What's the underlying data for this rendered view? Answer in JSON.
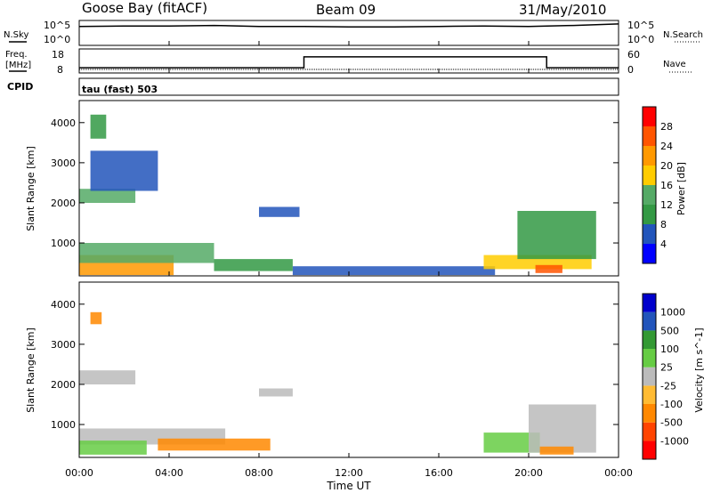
{
  "header": {
    "station": "Goose Bay (fitACF)",
    "beam": "Beam 09",
    "date": "31/May/2010"
  },
  "noise_panel": {
    "left_label": "N.Sky",
    "right_label": "N.Search",
    "left_ticks": [
      "10^5",
      "10^0"
    ],
    "right_ticks": [
      "10^5",
      "10^0"
    ]
  },
  "freq_panel": {
    "left_label_line1": "Freq.",
    "left_label_line2": "[MHz]",
    "right_label": "Nave",
    "left_ticks": [
      "18",
      "8"
    ],
    "right_ticks": [
      "60",
      "0"
    ]
  },
  "cpid": {
    "label": "CPID",
    "mode": "tau (fast) 503"
  },
  "x_axis": {
    "label": "Time UT",
    "ticks": [
      "00:00",
      "04:00",
      "08:00",
      "12:00",
      "16:00",
      "20:00",
      "00:00"
    ]
  },
  "colors": {
    "power_scale": [
      "#0000ff",
      "#2255bb",
      "#339944",
      "#55aa66",
      "#ffcc00",
      "#ff9900",
      "#ff5500",
      "#ff0000"
    ],
    "velocity_scale": [
      "#ff0000",
      "#ff4400",
      "#ff8800",
      "#ffbb33",
      "#bbbbbb",
      "#66cc44",
      "#339933",
      "#2255bb",
      "#0000cc"
    ]
  },
  "chart_data": [
    {
      "type": "line",
      "name": "noise",
      "x_range_hours": [
        0,
        24
      ],
      "ylim": [
        0,
        5
      ],
      "yscale": "log",
      "series": [
        {
          "x": [
            0,
            2,
            4,
            6,
            8,
            10,
            12,
            14,
            16,
            18,
            20,
            22,
            24
          ],
          "values": [
            3.8,
            3.9,
            3.9,
            4.0,
            3.8,
            3.8,
            3.7,
            3.7,
            3.8,
            3.9,
            3.8,
            4.0,
            4.3
          ]
        }
      ]
    },
    {
      "type": "line",
      "name": "frequency and nave",
      "x_range_hours": [
        0,
        24
      ],
      "ylim": [
        8,
        18
      ],
      "series": [
        {
          "x": [
            0,
            10,
            10,
            20.8,
            20.8,
            24
          ],
          "values": [
            10.2,
            10.2,
            14.7,
            14.7,
            10.2,
            10.2
          ]
        },
        {
          "x": [
            0,
            24
          ],
          "values": [
            9.5,
            9.5
          ]
        }
      ]
    },
    {
      "type": "heatmap",
      "title": "Power [dB]",
      "xlabel": "Time UT",
      "ylabel": "Slant Range [km]",
      "x_range_hours": [
        0,
        24
      ],
      "ylim": [
        180,
        4550
      ],
      "yticks": [
        1000,
        2000,
        3000,
        4000
      ],
      "colorbar_label": "Power [dB]",
      "colorbar_ticks": [
        "4",
        "8",
        "12",
        "16",
        "20",
        "24",
        "28"
      ],
      "values_blocks": [
        {
          "x": [
            0,
            4.2
          ],
          "y": [
            200,
            700
          ],
          "v": 22
        },
        {
          "x": [
            0,
            6.0
          ],
          "y": [
            500,
            1000
          ],
          "v": 12
        },
        {
          "x": [
            0,
            2.5
          ],
          "y": [
            2000,
            2350
          ],
          "v": 14
        },
        {
          "x": [
            0.5,
            3.5
          ],
          "y": [
            2300,
            3300
          ],
          "v": 6
        },
        {
          "x": [
            0.5,
            1.2
          ],
          "y": [
            3600,
            4200
          ],
          "v": 10
        },
        {
          "x": [
            6.0,
            9.5
          ],
          "y": [
            300,
            600
          ],
          "v": 10
        },
        {
          "x": [
            8.0,
            9.8
          ],
          "y": [
            1650,
            1900
          ],
          "v": 6
        },
        {
          "x": [
            9.5,
            18.5
          ],
          "y": [
            200,
            420
          ],
          "v": 6
        },
        {
          "x": [
            18.0,
            22.8
          ],
          "y": [
            350,
            700
          ],
          "v": 18
        },
        {
          "x": [
            19.5,
            23.0
          ],
          "y": [
            600,
            1800
          ],
          "v": 8
        },
        {
          "x": [
            20.3,
            21.5
          ],
          "y": [
            250,
            450
          ],
          "v": 26
        }
      ]
    },
    {
      "type": "heatmap",
      "title": "Velocity [m s^-1]",
      "xlabel": "Time UT",
      "ylabel": "Slant Range [km]",
      "x_range_hours": [
        0,
        24
      ],
      "ylim": [
        180,
        4550
      ],
      "yticks": [
        1000,
        2000,
        3000,
        4000
      ],
      "colorbar_label": "Velocity [m s^-1]",
      "colorbar_ticks": [
        "-1000",
        "-500",
        "-100",
        "-25",
        "25",
        "100",
        "500",
        "1000"
      ],
      "values_blocks": [
        {
          "x": [
            0,
            6.5
          ],
          "y": [
            500,
            900
          ],
          "v": 0
        },
        {
          "x": [
            0,
            2.5
          ],
          "y": [
            2000,
            2350
          ],
          "v": 0
        },
        {
          "x": [
            0,
            3.0
          ],
          "y": [
            250,
            600
          ],
          "v": 60
        },
        {
          "x": [
            3.5,
            8.5
          ],
          "y": [
            350,
            650
          ],
          "v": -80
        },
        {
          "x": [
            0.5,
            1.0
          ],
          "y": [
            3500,
            3800
          ],
          "v": -60
        },
        {
          "x": [
            8.0,
            9.5
          ],
          "y": [
            1700,
            1900
          ],
          "v": 0
        },
        {
          "x": [
            18.0,
            20.5
          ],
          "y": [
            300,
            800
          ],
          "v": 60
        },
        {
          "x": [
            20.0,
            23.0
          ],
          "y": [
            300,
            1500
          ],
          "v": 0
        },
        {
          "x": [
            20.5,
            22.0
          ],
          "y": [
            250,
            450
          ],
          "v": -80
        }
      ]
    }
  ]
}
